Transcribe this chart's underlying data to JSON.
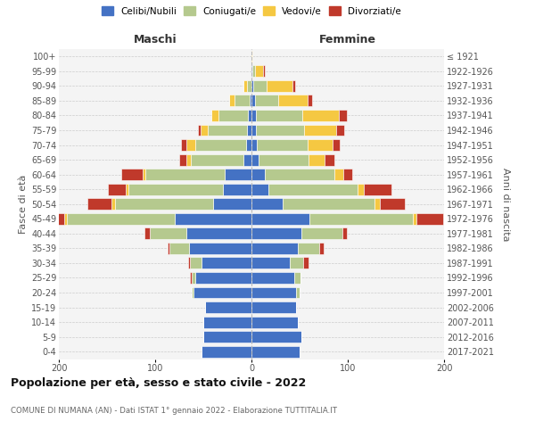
{
  "age_groups": [
    "0-4",
    "5-9",
    "10-14",
    "15-19",
    "20-24",
    "25-29",
    "30-34",
    "35-39",
    "40-44",
    "45-49",
    "50-54",
    "55-59",
    "60-64",
    "65-69",
    "70-74",
    "75-79",
    "80-84",
    "85-89",
    "90-94",
    "95-99",
    "100+"
  ],
  "birth_years": [
    "2017-2021",
    "2012-2016",
    "2007-2011",
    "2002-2006",
    "1997-2001",
    "1992-1996",
    "1987-1991",
    "1982-1986",
    "1977-1981",
    "1972-1976",
    "1967-1971",
    "1962-1966",
    "1957-1961",
    "1952-1956",
    "1947-1951",
    "1942-1946",
    "1937-1941",
    "1932-1936",
    "1927-1931",
    "1922-1926",
    "≤ 1921"
  ],
  "males_celibi": [
    52,
    50,
    50,
    48,
    60,
    58,
    52,
    65,
    68,
    80,
    40,
    30,
    28,
    8,
    6,
    5,
    4,
    2,
    0,
    0,
    0
  ],
  "males_coniugati": [
    0,
    0,
    0,
    0,
    2,
    4,
    12,
    20,
    38,
    112,
    102,
    98,
    82,
    55,
    52,
    40,
    30,
    16,
    5,
    0,
    0
  ],
  "males_vedovi": [
    0,
    0,
    0,
    0,
    0,
    0,
    0,
    0,
    0,
    2,
    3,
    3,
    3,
    5,
    10,
    8,
    8,
    5,
    3,
    0,
    0
  ],
  "males_divorziati": [
    0,
    0,
    0,
    0,
    0,
    2,
    2,
    2,
    5,
    10,
    25,
    18,
    22,
    7,
    5,
    3,
    0,
    0,
    0,
    0,
    0
  ],
  "females_nubili": [
    50,
    52,
    48,
    46,
    46,
    44,
    40,
    48,
    52,
    60,
    32,
    18,
    14,
    7,
    6,
    5,
    5,
    4,
    2,
    1,
    0
  ],
  "females_coniugate": [
    0,
    0,
    0,
    0,
    4,
    7,
    14,
    22,
    42,
    108,
    96,
    92,
    72,
    52,
    52,
    50,
    48,
    24,
    14,
    3,
    0
  ],
  "females_vedove": [
    0,
    0,
    0,
    0,
    0,
    0,
    0,
    0,
    0,
    3,
    5,
    7,
    9,
    17,
    26,
    33,
    38,
    30,
    27,
    8,
    1
  ],
  "females_divorziate": [
    0,
    0,
    0,
    0,
    0,
    0,
    5,
    5,
    5,
    28,
    26,
    28,
    10,
    10,
    8,
    8,
    8,
    5,
    2,
    2,
    0
  ],
  "color_cel": "#4472c4",
  "color_con": "#b5c98e",
  "color_ved": "#f5c842",
  "color_div": "#c0392b",
  "legend_labels": [
    "Celibi/Nubili",
    "Coniugati/e",
    "Vedovi/e",
    "Divorziati/e"
  ],
  "title": "Popolazione per età, sesso e stato civile - 2022",
  "subtitle": "COMUNE DI NUMANA (AN) - Dati ISTAT 1° gennaio 2022 - Elaborazione TUTTITALIA.IT",
  "label_maschi": "Maschi",
  "label_femmine": "Femmine",
  "ylabel_left": "Fasce di età",
  "ylabel_right": "Anni di nascita",
  "xlim": 200,
  "bg_color": "#f4f4f4"
}
